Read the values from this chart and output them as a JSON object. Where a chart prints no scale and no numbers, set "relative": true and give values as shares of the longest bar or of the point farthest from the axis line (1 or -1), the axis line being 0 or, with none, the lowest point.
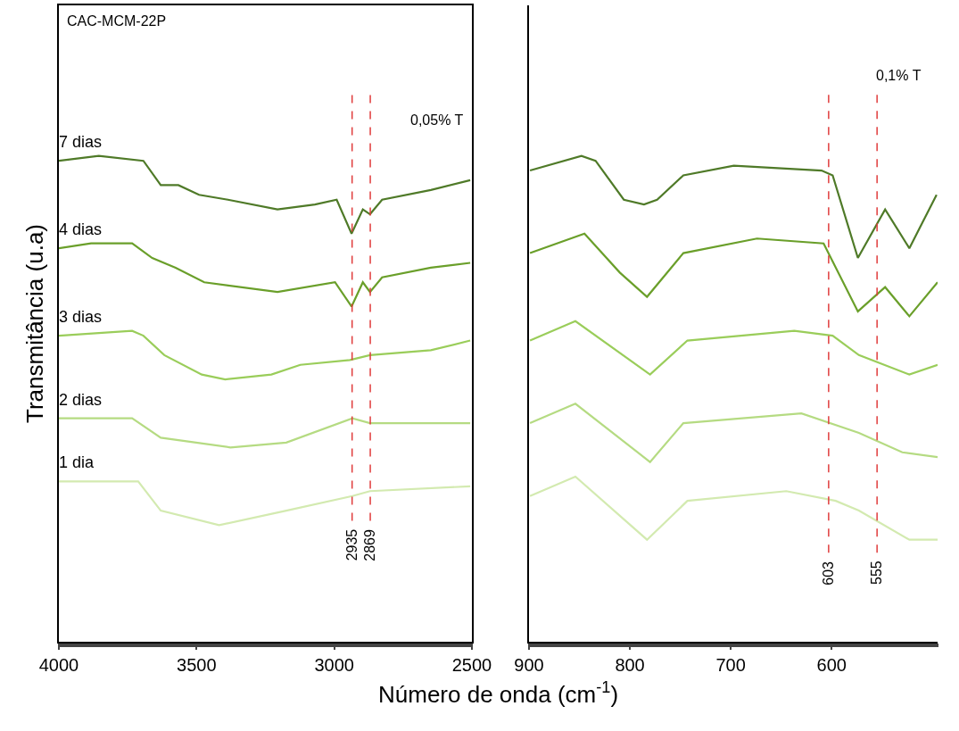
{
  "chart_data": [
    {
      "type": "line",
      "relative": true,
      "xlabel": "Número de onda (cm$^{-1}$)",
      "ylabel": "Transmitância (u.a)",
      "xlim": [
        4000,
        2500
      ],
      "xticks": [
        4000,
        3500,
        3000,
        2500
      ],
      "legend": false,
      "tick_labels": "x",
      "line_style": "solid",
      "annotations": [
        "CAC-MCM-22P",
        "0,05% T"
      ],
      "ref_lines": [
        {
          "axis": "x",
          "value": 2935,
          "label": "2935",
          "color": "#e03c3c",
          "line_style": "dashed"
        },
        {
          "axis": "x",
          "value": 2869,
          "label": "2869",
          "color": "#e03c3c",
          "line_style": "dashed"
        }
      ],
      "series": [
        {
          "name": "7 dias",
          "color": "#4f7a28",
          "x": [
            4000,
            3855,
            3693,
            3630,
            3566,
            3491,
            3386,
            3206,
            3070,
            2991,
            2937,
            2896,
            2870,
            2826,
            2649,
            2506
          ],
          "values": [
            0.99,
            1.0,
            0.99,
            0.94,
            0.94,
            0.92,
            0.91,
            0.89,
            0.9,
            0.91,
            0.84,
            0.89,
            0.88,
            0.91,
            0.93,
            0.95
          ]
        },
        {
          "name": "4 dias",
          "color": "#6a9f2a",
          "x": [
            4000,
            3883,
            3734,
            3661,
            3576,
            3472,
            3206,
            2997,
            2937,
            2896,
            2870,
            2826,
            2649,
            2506
          ],
          "values": [
            0.81,
            0.82,
            0.82,
            0.79,
            0.77,
            0.74,
            0.72,
            0.74,
            0.69,
            0.74,
            0.72,
            0.75,
            0.77,
            0.78
          ]
        },
        {
          "name": "3 dias",
          "color": "#9acd5a",
          "x": [
            4000,
            3734,
            3693,
            3617,
            3481,
            3396,
            3228,
            3123,
            2943,
            2870,
            2649,
            2506
          ],
          "values": [
            0.63,
            0.64,
            0.63,
            0.59,
            0.55,
            0.54,
            0.55,
            0.57,
            0.58,
            0.59,
            0.6,
            0.62
          ]
        },
        {
          "name": "2 dias",
          "color": "#b5db82",
          "x": [
            4000,
            3734,
            3630,
            3377,
            3174,
            2934,
            2870,
            2506
          ],
          "values": [
            0.46,
            0.46,
            0.42,
            0.4,
            0.41,
            0.46,
            0.45,
            0.45
          ]
        },
        {
          "name": "1 dia",
          "color": "#d3eab0",
          "x": [
            4000,
            3712,
            3630,
            3418,
            3174,
            2934,
            2870,
            2506
          ],
          "values": [
            0.33,
            0.33,
            0.27,
            0.24,
            0.27,
            0.3,
            0.31,
            0.32
          ]
        }
      ]
    },
    {
      "type": "line",
      "relative": true,
      "xlim": [
        900,
        495
      ],
      "xticks": [
        900,
        800,
        700,
        600
      ],
      "legend": false,
      "tick_labels": "x",
      "line_style": "solid",
      "annotations": [
        "0,1% T"
      ],
      "ref_lines": [
        {
          "axis": "x",
          "value": 603,
          "label": "603",
          "color": "#e03c3c",
          "line_style": "dashed"
        },
        {
          "axis": "x",
          "value": 555,
          "label": "555",
          "color": "#e03c3c",
          "line_style": "dashed"
        }
      ],
      "series": [
        {
          "color": "#4f7a28",
          "x": [
            899,
            848,
            834,
            806,
            786,
            773,
            747,
            697,
            610,
            599,
            574,
            547,
            523,
            496
          ],
          "values": [
            0.97,
            1.0,
            0.99,
            0.91,
            0.9,
            0.91,
            0.96,
            0.98,
            0.97,
            0.96,
            0.79,
            0.89,
            0.81,
            0.92
          ]
        },
        {
          "color": "#6a9f2a",
          "x": [
            899,
            845,
            810,
            783,
            747,
            674,
            608,
            574,
            547,
            523,
            495
          ],
          "values": [
            0.8,
            0.84,
            0.76,
            0.71,
            0.8,
            0.83,
            0.82,
            0.68,
            0.73,
            0.67,
            0.74
          ]
        },
        {
          "color": "#9acd5a",
          "x": [
            899,
            854,
            780,
            743,
            637,
            599,
            573,
            523,
            495
          ],
          "values": [
            0.62,
            0.66,
            0.55,
            0.62,
            0.64,
            0.63,
            0.59,
            0.55,
            0.57
          ]
        },
        {
          "color": "#b5db82",
          "x": [
            899,
            854,
            780,
            747,
            630,
            573,
            530,
            495
          ],
          "values": [
            0.45,
            0.49,
            0.37,
            0.45,
            0.47,
            0.43,
            0.39,
            0.38
          ]
        },
        {
          "color": "#d3eab0",
          "x": [
            899,
            854,
            783,
            743,
            645,
            596,
            573,
            523,
            495
          ],
          "values": [
            0.3,
            0.34,
            0.21,
            0.29,
            0.31,
            0.29,
            0.27,
            0.21,
            0.21
          ]
        }
      ]
    }
  ]
}
